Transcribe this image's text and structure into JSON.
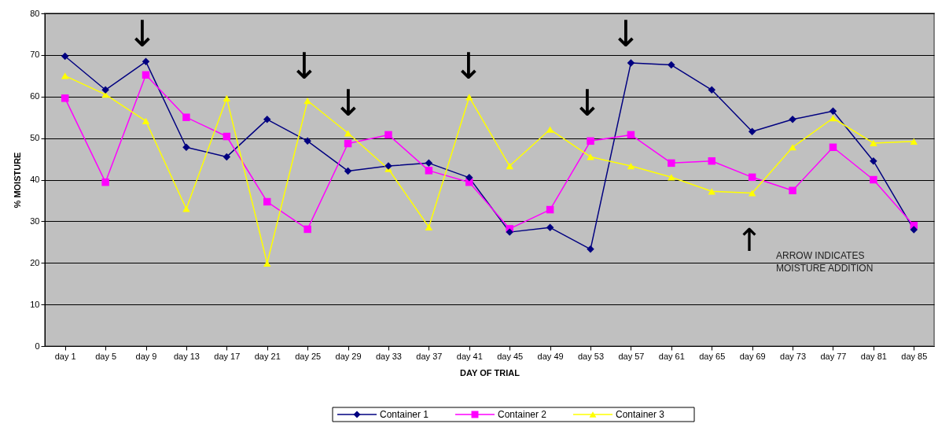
{
  "chart_data": {
    "type": "line",
    "xlabel": "DAY OF TRIAL",
    "ylabel": "% MOISTURE",
    "categories": [
      "day 1",
      "day 5",
      "day 9",
      "day 13",
      "day 17",
      "day 21",
      "day 25",
      "day 29",
      "day 33",
      "day 37",
      "day 41",
      "day 45",
      "day 49",
      "day 53",
      "day 57",
      "day 61",
      "day 65",
      "day 69",
      "day 73",
      "day 77",
      "day 81",
      "day 85"
    ],
    "series": [
      {
        "name": "Container 1",
        "color": "#000080",
        "marker": "diamond",
        "values": [
          69.7,
          61.6,
          68.4,
          47.8,
          45.5,
          54.5,
          49.3,
          42.1,
          43.3,
          44.0,
          40.5,
          27.4,
          28.5,
          23.3,
          68.1,
          67.6,
          61.6,
          51.6,
          54.5,
          56.5,
          44.5,
          28.0
        ]
      },
      {
        "name": "Container 2",
        "color": "#ff00ff",
        "marker": "square",
        "values": [
          59.6,
          39.4,
          65.2,
          55.0,
          50.4,
          34.7,
          28.1,
          48.7,
          50.8,
          42.2,
          39.4,
          28.2,
          32.8,
          49.3,
          50.8,
          44.0,
          44.5,
          40.6,
          37.4,
          47.8,
          40.0,
          29.0
        ]
      },
      {
        "name": "Container 3",
        "color": "#ffff00",
        "marker": "triangle",
        "values": [
          65.0,
          60.5,
          54.1,
          33.0,
          59.6,
          19.9,
          59.0,
          51.2,
          42.6,
          28.6,
          59.9,
          43.3,
          52.1,
          45.5,
          43.3,
          40.6,
          37.2,
          36.8,
          47.8,
          54.8,
          48.8,
          49.2
        ]
      }
    ],
    "ylim": [
      0,
      80
    ],
    "yticks": [
      0,
      10,
      20,
      30,
      40,
      50,
      60,
      70,
      80
    ],
    "grid": "y",
    "legend": "bottom",
    "annotations": [
      "↓",
      "↓",
      "↓",
      "↓",
      "↓",
      "↓",
      "↑",
      "ARROW INDICATES\nMOISTURE ADDITION"
    ]
  }
}
